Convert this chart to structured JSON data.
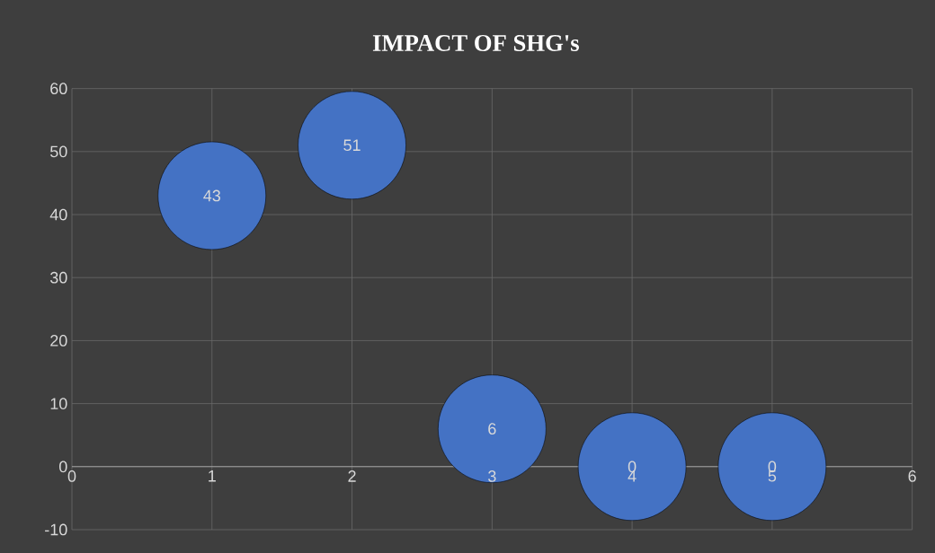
{
  "chart_data": {
    "type": "bubble",
    "title": "IMPACT OF SHG's",
    "x": [
      1,
      2,
      3,
      4,
      5
    ],
    "values": [
      43,
      51,
      6,
      0,
      0
    ],
    "sizes": [
      1,
      1,
      1,
      1,
      1
    ],
    "color": "#4472c4",
    "xlim": [
      0,
      6
    ],
    "ylim": [
      -10,
      60
    ],
    "xticks": [
      0,
      1,
      2,
      3,
      4,
      5,
      6
    ],
    "yticks": [
      -10,
      0,
      10,
      20,
      30,
      40,
      50,
      60
    ],
    "grid": true,
    "data_labels": true
  }
}
